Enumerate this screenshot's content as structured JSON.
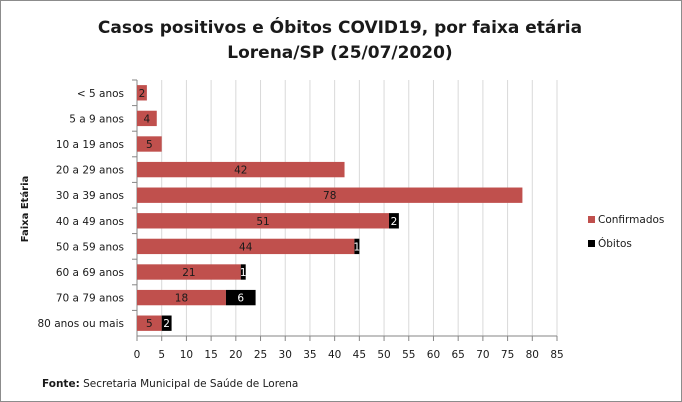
{
  "chart_data": {
    "type": "bar",
    "orientation": "horizontal",
    "stacked": true,
    "title": [
      "Casos positivos e Óbitos COVID19, por faixa etária",
      "Lorena/SP (25/07/2020)"
    ],
    "ylabel": "Faixa Etária",
    "xlabel": "",
    "categories": [
      "< 5 anos",
      "5 a 9 anos",
      "10 a 19 anos",
      "20 a 29 anos",
      "30 a 39 anos",
      "40 a 49 anos",
      "50 a 59 anos",
      "60 a 69 anos",
      "70 a 79 anos",
      "80 anos ou mais"
    ],
    "series": [
      {
        "name": "Confirmados",
        "color": "#c0504d",
        "values": [
          2,
          4,
          5,
          42,
          78,
          51,
          44,
          21,
          18,
          5
        ]
      },
      {
        "name": "Óbitos",
        "color": "#000000",
        "values": [
          null,
          null,
          null,
          null,
          null,
          2,
          1,
          1,
          6,
          2
        ]
      }
    ],
    "xlim": [
      0,
      85
    ],
    "xticks": [
      0,
      5,
      10,
      15,
      20,
      25,
      30,
      35,
      40,
      45,
      50,
      55,
      60,
      65,
      70,
      75,
      80,
      85
    ],
    "grid": "vertical",
    "legend": "right",
    "source_label": "Fonte:",
    "source_text": "Secretaria Municipal de Saúde de Lorena"
  }
}
